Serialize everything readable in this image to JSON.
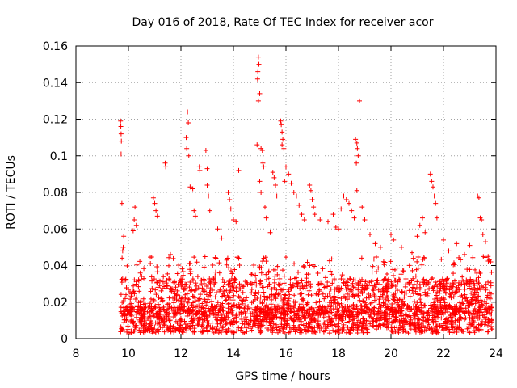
{
  "chart_data": {
    "type": "scatter",
    "title": "Day 016 of 2018, Rate Of TEC Index for receiver acor",
    "xlabel": "GPS time / hours",
    "ylabel": "ROTI / TECUs",
    "xlim": [
      8,
      24
    ],
    "ylim": [
      0,
      0.16
    ],
    "xticks": [
      8,
      10,
      12,
      14,
      16,
      18,
      20,
      22,
      24
    ],
    "yticks": [
      0,
      0.02,
      0.04,
      0.06,
      0.08,
      0.1,
      0.12,
      0.14,
      0.16
    ],
    "xtick_labels": [
      "8",
      "10",
      "12",
      "14",
      "16",
      "18",
      "20",
      "22",
      "24"
    ],
    "ytick_labels": [
      "0",
      "0.02",
      "0.04",
      "0.06",
      "0.08",
      "0.1",
      "0.12",
      "0.14",
      "0.16"
    ],
    "grid": true,
    "marker": "+",
    "color": "#ff0000",
    "series": [
      {
        "name": "ROTI",
        "points": [
          [
            9.7,
            0.119
          ],
          [
            9.71,
            0.116
          ],
          [
            9.72,
            0.112
          ],
          [
            9.73,
            0.108
          ],
          [
            9.72,
            0.101
          ],
          [
            9.75,
            0.074
          ],
          [
            9.8,
            0.05
          ],
          [
            9.78,
            0.048
          ],
          [
            9.82,
            0.056
          ],
          [
            10.25,
            0.072
          ],
          [
            10.22,
            0.065
          ],
          [
            10.18,
            0.059
          ],
          [
            10.3,
            0.062
          ],
          [
            10.95,
            0.077
          ],
          [
            11.0,
            0.074
          ],
          [
            11.05,
            0.07
          ],
          [
            11.1,
            0.067
          ],
          [
            11.4,
            0.096
          ],
          [
            11.42,
            0.094
          ],
          [
            11.6,
            0.046
          ],
          [
            12.25,
            0.124
          ],
          [
            12.28,
            0.118
          ],
          [
            12.2,
            0.11
          ],
          [
            12.22,
            0.104
          ],
          [
            12.3,
            0.1
          ],
          [
            12.35,
            0.083
          ],
          [
            12.45,
            0.082
          ],
          [
            12.5,
            0.07
          ],
          [
            12.55,
            0.067
          ],
          [
            12.7,
            0.094
          ],
          [
            12.72,
            0.092
          ],
          [
            12.95,
            0.103
          ],
          [
            13.0,
            0.093
          ],
          [
            13.0,
            0.084
          ],
          [
            13.05,
            0.078
          ],
          [
            13.1,
            0.07
          ],
          [
            13.4,
            0.06
          ],
          [
            13.55,
            0.055
          ],
          [
            13.8,
            0.08
          ],
          [
            13.85,
            0.076
          ],
          [
            13.9,
            0.071
          ],
          [
            14.0,
            0.065
          ],
          [
            14.1,
            0.064
          ],
          [
            14.2,
            0.092
          ],
          [
            14.95,
            0.154
          ],
          [
            14.97,
            0.15
          ],
          [
            14.93,
            0.146
          ],
          [
            14.92,
            0.142
          ],
          [
            15.0,
            0.134
          ],
          [
            14.95,
            0.13
          ],
          [
            14.9,
            0.106
          ],
          [
            15.05,
            0.104
          ],
          [
            15.1,
            0.103
          ],
          [
            15.12,
            0.096
          ],
          [
            15.15,
            0.094
          ],
          [
            15.0,
            0.086
          ],
          [
            15.05,
            0.08
          ],
          [
            15.2,
            0.072
          ],
          [
            15.25,
            0.066
          ],
          [
            15.4,
            0.058
          ],
          [
            15.5,
            0.091
          ],
          [
            15.55,
            0.088
          ],
          [
            15.6,
            0.084
          ],
          [
            15.65,
            0.078
          ],
          [
            15.8,
            0.119
          ],
          [
            15.82,
            0.117
          ],
          [
            15.85,
            0.113
          ],
          [
            15.88,
            0.109
          ],
          [
            15.85,
            0.106
          ],
          [
            15.92,
            0.104
          ],
          [
            16.0,
            0.094
          ],
          [
            16.1,
            0.09
          ],
          [
            15.95,
            0.086
          ],
          [
            16.2,
            0.085
          ],
          [
            16.3,
            0.08
          ],
          [
            16.4,
            0.078
          ],
          [
            16.5,
            0.073
          ],
          [
            16.6,
            0.068
          ],
          [
            16.7,
            0.065
          ],
          [
            16.9,
            0.084
          ],
          [
            16.95,
            0.081
          ],
          [
            17.0,
            0.076
          ],
          [
            17.05,
            0.072
          ],
          [
            17.1,
            0.068
          ],
          [
            17.3,
            0.065
          ],
          [
            17.6,
            0.064
          ],
          [
            17.8,
            0.068
          ],
          [
            17.9,
            0.061
          ],
          [
            18.0,
            0.06
          ],
          [
            18.1,
            0.071
          ],
          [
            18.2,
            0.078
          ],
          [
            18.3,
            0.076
          ],
          [
            18.4,
            0.074
          ],
          [
            18.5,
            0.07
          ],
          [
            18.6,
            0.066
          ],
          [
            18.65,
            0.109
          ],
          [
            18.7,
            0.107
          ],
          [
            18.72,
            0.104
          ],
          [
            18.75,
            0.1
          ],
          [
            18.68,
            0.096
          ],
          [
            18.8,
            0.13
          ],
          [
            18.7,
            0.081
          ],
          [
            18.9,
            0.072
          ],
          [
            19.0,
            0.065
          ],
          [
            19.2,
            0.057
          ],
          [
            19.4,
            0.052
          ],
          [
            19.6,
            0.05
          ],
          [
            20.0,
            0.057
          ],
          [
            20.1,
            0.054
          ],
          [
            20.4,
            0.05
          ],
          [
            20.8,
            0.047
          ],
          [
            21.0,
            0.056
          ],
          [
            21.1,
            0.062
          ],
          [
            21.2,
            0.066
          ],
          [
            21.3,
            0.058
          ],
          [
            21.5,
            0.09
          ],
          [
            21.55,
            0.086
          ],
          [
            21.6,
            0.083
          ],
          [
            21.65,
            0.078
          ],
          [
            21.7,
            0.074
          ],
          [
            21.75,
            0.066
          ],
          [
            22.0,
            0.054
          ],
          [
            22.2,
            0.048
          ],
          [
            22.5,
            0.052
          ],
          [
            22.8,
            0.046
          ],
          [
            23.0,
            0.051
          ],
          [
            23.3,
            0.078
          ],
          [
            23.35,
            0.077
          ],
          [
            23.4,
            0.066
          ],
          [
            23.45,
            0.065
          ],
          [
            23.5,
            0.057
          ],
          [
            23.6,
            0.053
          ],
          [
            23.7,
            0.045
          ],
          [
            23.75,
            0.043
          ],
          [
            23.8,
            0.042
          ]
        ],
        "dense_band": {
          "x_start": 9.7,
          "x_end": 23.85,
          "typical_min": 0.003,
          "typical_max": 0.045
        }
      }
    ]
  }
}
